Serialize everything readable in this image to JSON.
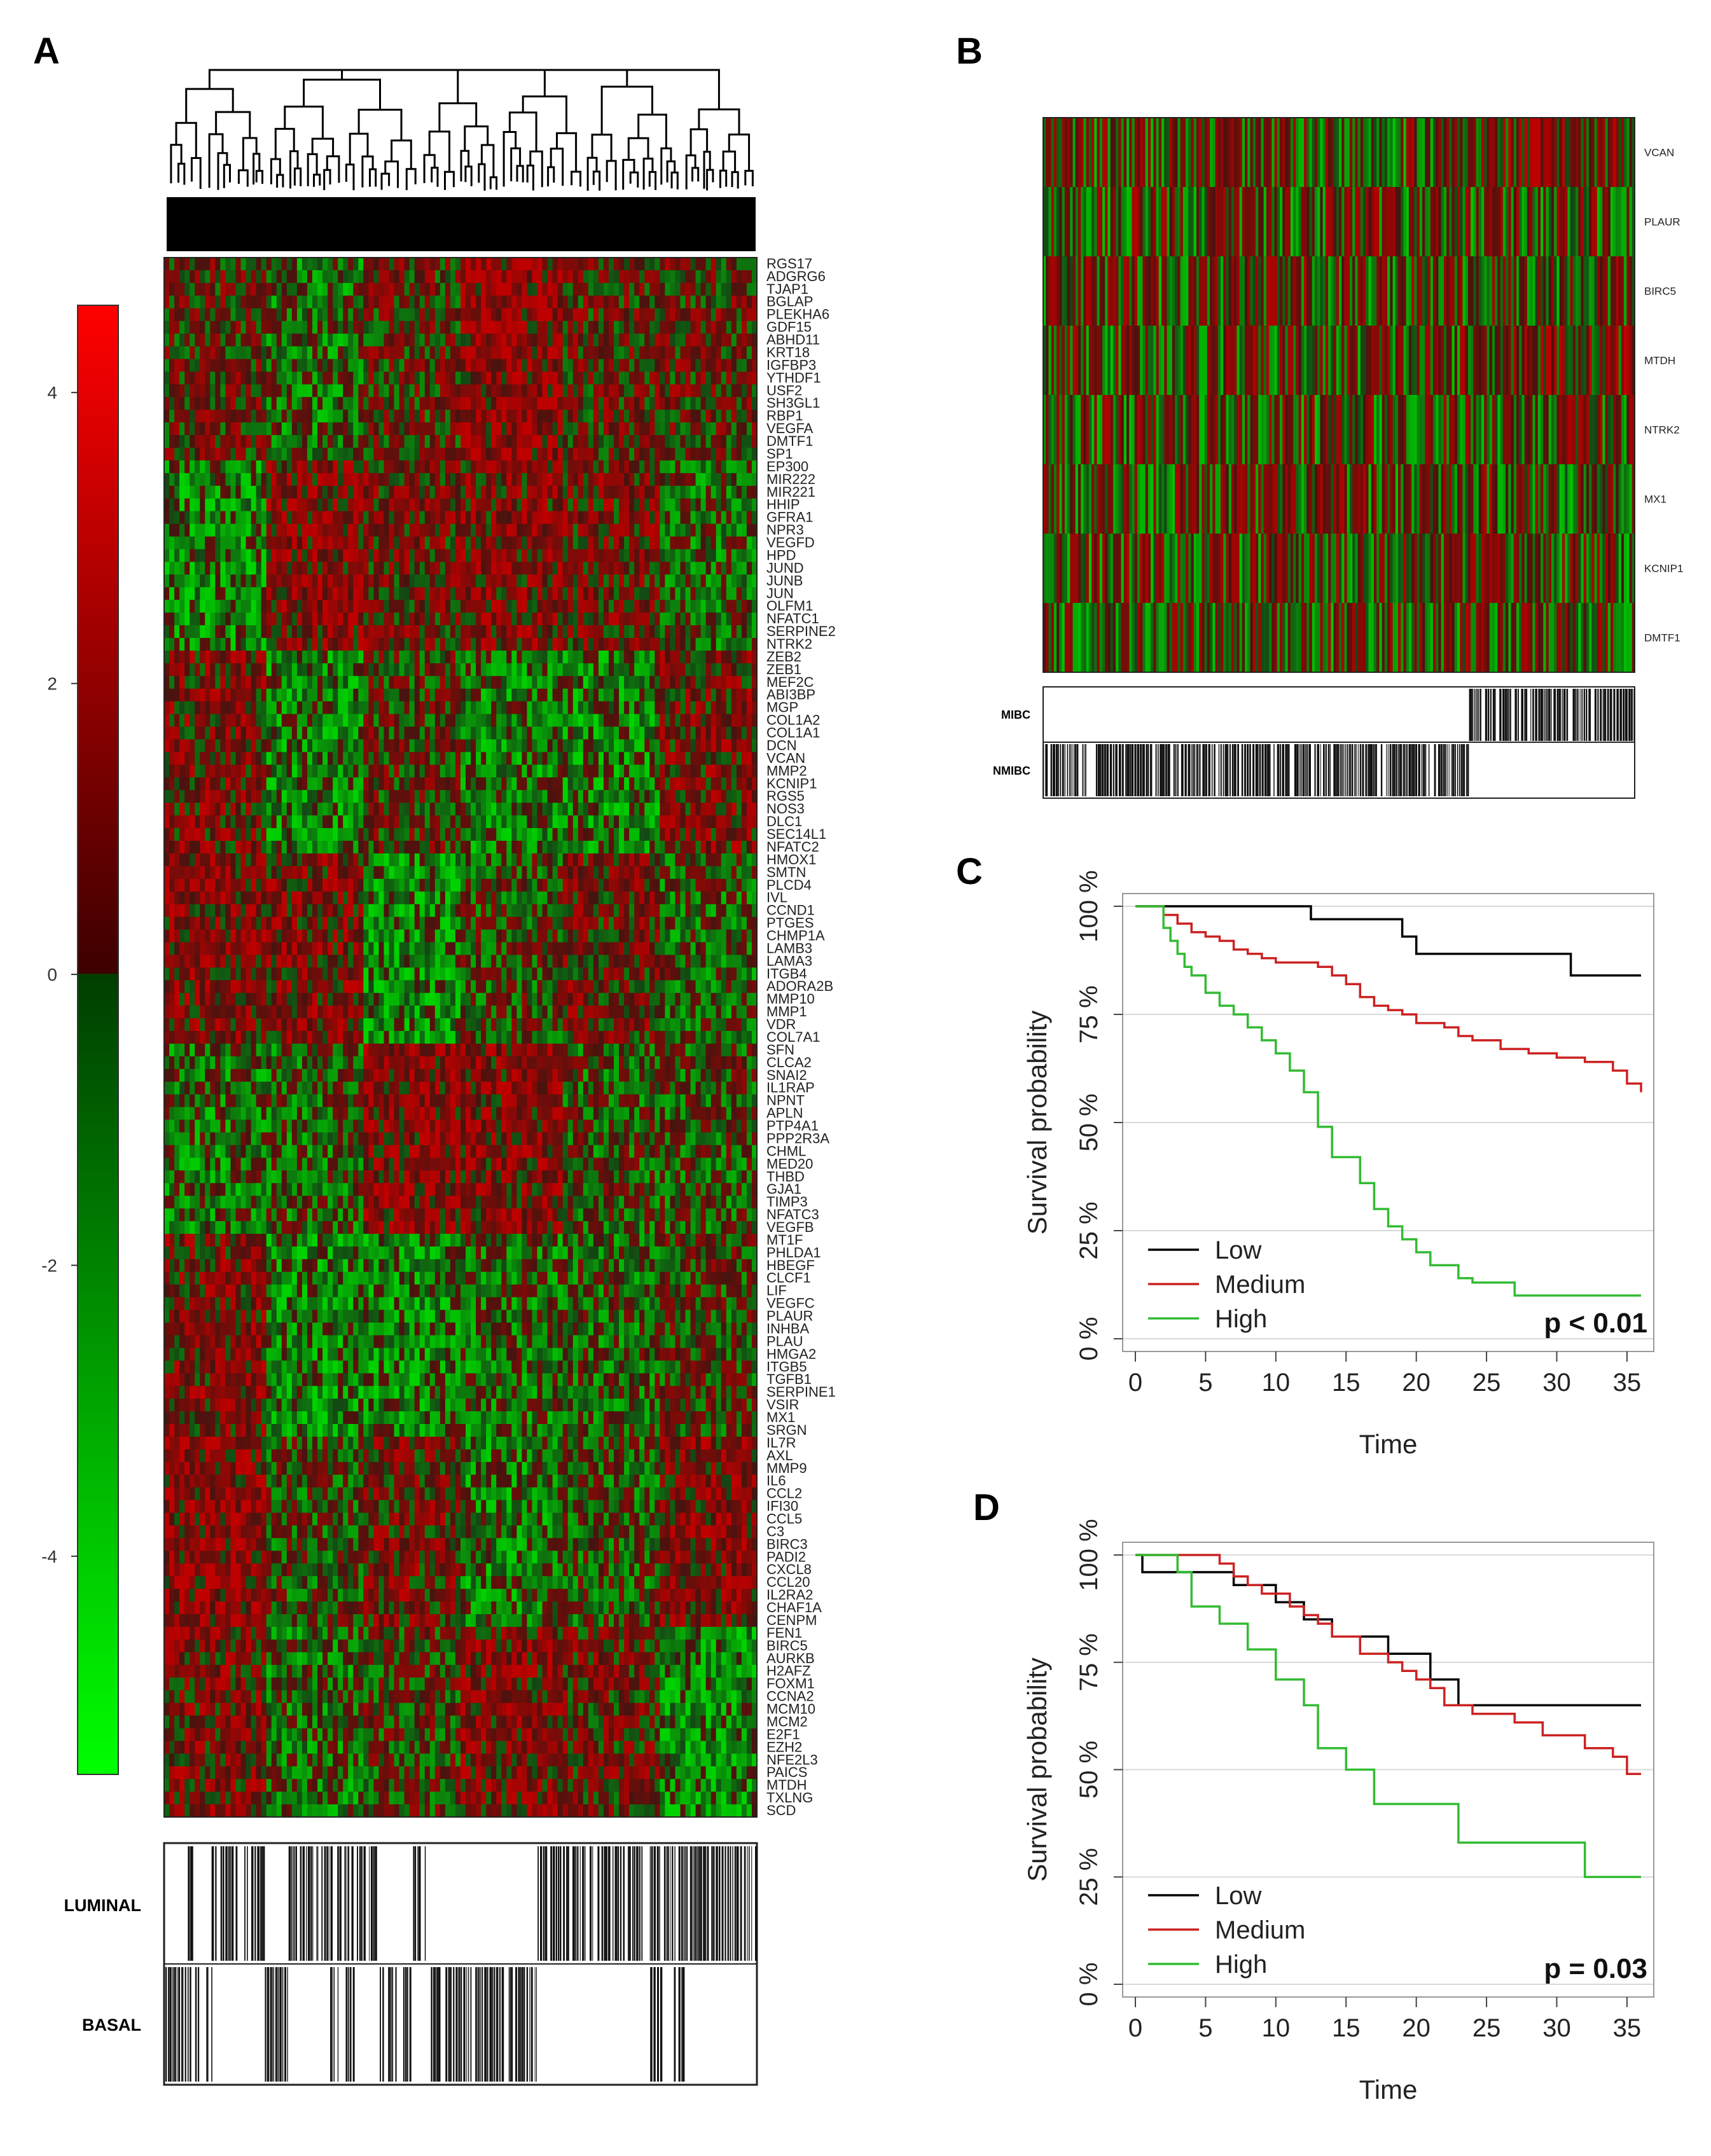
{
  "panels": {
    "a": "A",
    "b": "B",
    "c": "C",
    "d": "D"
  },
  "colors": {
    "red": "#a01010",
    "green": "#1c8a1c",
    "black": "#000000",
    "grid": "#d9d9d9"
  },
  "panel_a": {
    "colorbar": {
      "ticks": [
        4,
        2,
        0,
        -2,
        -4
      ],
      "labels": [
        "4",
        "2",
        "0",
        "-2",
        "-4"
      ],
      "range": [
        -5.5,
        4.6
      ]
    },
    "genes": [
      "RGS17",
      "ADGRG6",
      "TJAP1",
      "BGLAP",
      "PLEKHA6",
      "GDF15",
      "ABHD11",
      "KRT18",
      "IGFBP3",
      "YTHDF1",
      "USF2",
      "SH3GL1",
      "RBP1",
      "VEGFA",
      "DMTF1",
      "SP1",
      "EP300",
      "MIR222",
      "MIR221",
      "HHIP",
      "GFRA1",
      "NPR3",
      "VEGFD",
      "HPD",
      "JUND",
      "JUNB",
      "JUN",
      "OLFM1",
      "NFATC1",
      "SERPINE2",
      "NTRK2",
      "ZEB2",
      "ZEB1",
      "MEF2C",
      "ABI3BP",
      "MGP",
      "COL1A2",
      "COL1A1",
      "DCN",
      "VCAN",
      "MMP2",
      "KCNIP1",
      "RGS5",
      "NOS3",
      "DLC1",
      "SEC14L1",
      "NFATC2",
      "HMOX1",
      "SMTN",
      "PLCD4",
      "IVL",
      "CCND1",
      "PTGES",
      "CHMP1A",
      "LAMB3",
      "LAMA3",
      "ITGB4",
      "ADORA2B",
      "MMP10",
      "MMP1",
      "VDR",
      "COL7A1",
      "SFN",
      "CLCA2",
      "SNAI2",
      "IL1RAP",
      "NPNT",
      "APLN",
      "PTP4A1",
      "PPP2R3A",
      "CHML",
      "MED20",
      "THBD",
      "GJA1",
      "TIMP3",
      "NFATC3",
      "VEGFB",
      "MT1F",
      "PHLDA1",
      "HBEGF",
      "CLCF1",
      "LIF",
      "VEGFC",
      "PLAUR",
      "INHBA",
      "PLAU",
      "HMGA2",
      "ITGB5",
      "TGFB1",
      "SERPINE1",
      "VSIR",
      "MX1",
      "SRGN",
      "IL7R",
      "AXL",
      "MMP9",
      "IL6",
      "CCL2",
      "IFI30",
      "CCL5",
      "C3",
      "BIRC3",
      "PADI2",
      "CXCL8",
      "CCL20",
      "IL2RA2",
      "CHAF1A",
      "CENPM",
      "FEN1",
      "BIRC5",
      "AURKB",
      "H2AFZ",
      "FOXM1",
      "CCNA2",
      "MCM10",
      "MCM2",
      "E2F1",
      "EZH2",
      "NFE2L3",
      "PAICS",
      "MTDH",
      "TXLNG",
      "SCD"
    ],
    "annotations": [
      "LUMINAL",
      "BASAL"
    ]
  },
  "panel_b": {
    "genes": [
      "VCAN",
      "PLAUR",
      "BIRC5",
      "MTDH",
      "NTRK2",
      "MX1",
      "KCNIP1",
      "DMTF1"
    ],
    "annotations": [
      "MIBC",
      "NMIBC"
    ]
  },
  "chart_data": [
    {
      "type": "line",
      "panel": "C",
      "title": "",
      "xlabel": "Time",
      "ylabel": "Survival probability",
      "xlim": [
        0,
        36
      ],
      "ylim": [
        0,
        100
      ],
      "xticks": [
        0,
        5,
        10,
        15,
        20,
        25,
        30,
        35
      ],
      "xtick_labels": [
        "0",
        "5",
        "10",
        "15",
        "20",
        "25",
        "30",
        "35"
      ],
      "yticks": [
        0,
        25,
        50,
        75,
        100
      ],
      "ytick_labels": [
        "0 %",
        "25 %",
        "50 %",
        "75 %",
        "100 %"
      ],
      "annotation": "p < 0.01",
      "legend": {
        "position": "bottom-left",
        "entries": [
          "Low",
          "Medium",
          "High"
        ]
      },
      "series": [
        {
          "name": "Low",
          "color": "#000000",
          "x": [
            0,
            12.5,
            19,
            20,
            31,
            36
          ],
          "values": [
            100,
            97,
            93,
            89,
            84,
            84
          ]
        },
        {
          "name": "Medium",
          "color": "#cc2222",
          "x": [
            0,
            2,
            3,
            4,
            5,
            6,
            7,
            8,
            9,
            10,
            11,
            13,
            14,
            15,
            16,
            17,
            18,
            19,
            20,
            22,
            23,
            24,
            26,
            28,
            30,
            32,
            34,
            35,
            36
          ],
          "values": [
            100,
            98,
            96,
            94,
            93,
            92,
            90,
            89,
            88,
            87,
            87,
            86,
            84,
            82,
            79,
            77,
            76,
            75,
            73,
            72,
            70,
            69,
            67,
            66,
            65,
            64,
            62,
            59,
            57
          ]
        },
        {
          "name": "High",
          "color": "#33bb33",
          "x": [
            0,
            2,
            2.5,
            3,
            3.5,
            4,
            5,
            6,
            7,
            8,
            9,
            10,
            11,
            12,
            13,
            14,
            16,
            17,
            18,
            19,
            20,
            21,
            23,
            24,
            27,
            36
          ],
          "values": [
            100,
            95,
            92,
            89,
            86,
            84,
            80,
            77,
            75,
            72,
            69,
            66,
            62,
            57,
            49,
            42,
            36,
            30,
            26,
            23,
            20,
            17,
            14,
            13,
            10,
            10
          ]
        }
      ]
    },
    {
      "type": "line",
      "panel": "D",
      "title": "",
      "xlabel": "Time",
      "ylabel": "Survival probability",
      "xlim": [
        0,
        36
      ],
      "ylim": [
        0,
        100
      ],
      "xticks": [
        0,
        5,
        10,
        15,
        20,
        25,
        30,
        35
      ],
      "xtick_labels": [
        "0",
        "5",
        "10",
        "15",
        "20",
        "25",
        "30",
        "35"
      ],
      "yticks": [
        0,
        25,
        50,
        75,
        100
      ],
      "ytick_labels": [
        "0 %",
        "25 %",
        "50 %",
        "75 %",
        "100 %"
      ],
      "annotation": "p = 0.03",
      "legend": {
        "position": "bottom-left",
        "entries": [
          "Low",
          "Medium",
          "High"
        ]
      },
      "series": [
        {
          "name": "Low",
          "color": "#000000",
          "x": [
            0,
            0.5,
            5,
            7,
            10,
            12,
            14,
            18,
            21,
            23,
            36
          ],
          "values": [
            100,
            96,
            96,
            93,
            89,
            85,
            81,
            77,
            71,
            65,
            65
          ]
        },
        {
          "name": "Medium",
          "color": "#cc2222",
          "x": [
            0,
            6,
            7,
            8,
            9,
            11,
            12,
            13,
            14,
            16,
            18,
            19,
            20,
            21,
            22,
            24,
            27,
            29,
            32,
            34,
            35,
            36
          ],
          "values": [
            100,
            98,
            95,
            93,
            91,
            88,
            86,
            84,
            81,
            77,
            75,
            73,
            71,
            69,
            65,
            63,
            61,
            58,
            55,
            53,
            49,
            49
          ]
        },
        {
          "name": "High",
          "color": "#33bb33",
          "x": [
            0,
            3,
            4,
            6,
            8,
            10,
            12,
            13,
            15,
            17,
            23,
            32,
            36
          ],
          "values": [
            100,
            96,
            88,
            84,
            78,
            71,
            65,
            55,
            50,
            42,
            33,
            25,
            25
          ]
        }
      ]
    }
  ]
}
